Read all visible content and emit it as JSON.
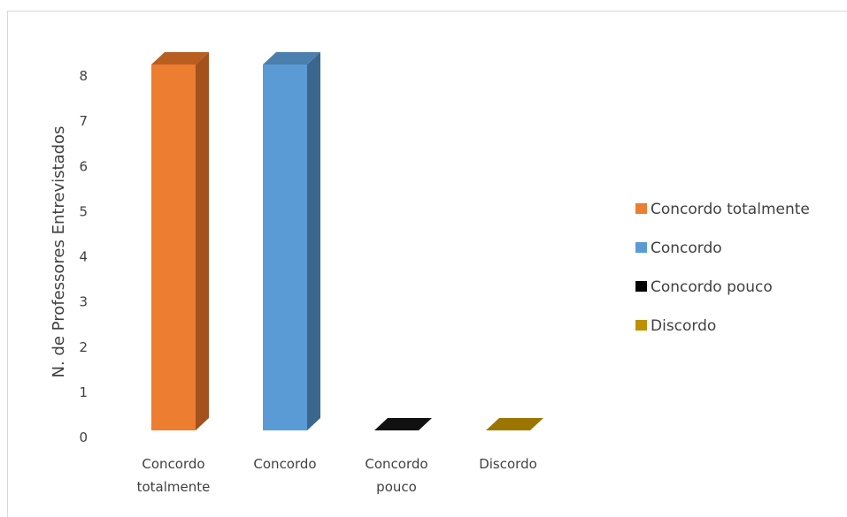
{
  "chart_data": {
    "type": "bar",
    "title": "",
    "ylabel": "N. de Professores Entrevistados",
    "xlabel": "",
    "ylim": [
      0,
      8
    ],
    "yticks": [
      0,
      1,
      2,
      3,
      4,
      5,
      6,
      7,
      8
    ],
    "categories": [
      [
        "Concordo",
        "totalmente"
      ],
      [
        "Concordo"
      ],
      [
        "Concordo",
        "pouco"
      ],
      [
        "Discordo"
      ]
    ],
    "values": [
      8,
      8,
      0,
      0
    ],
    "legend": {
      "position": "right",
      "entries": [
        "Concordo totalmente",
        "Concordo",
        "Concordo pouco",
        "Discordo"
      ]
    },
    "colors": {
      "front": [
        "#ed7d31",
        "#5b9bd5",
        "#000000",
        "#bf9000"
      ],
      "side": [
        "#a3521c",
        "#3b668e",
        "#000000",
        "#8a6700"
      ],
      "top": [
        "#b85e21",
        "#4a7fae",
        "#111111",
        "#9c7500"
      ]
    },
    "style": "3d-column",
    "grid": false
  }
}
